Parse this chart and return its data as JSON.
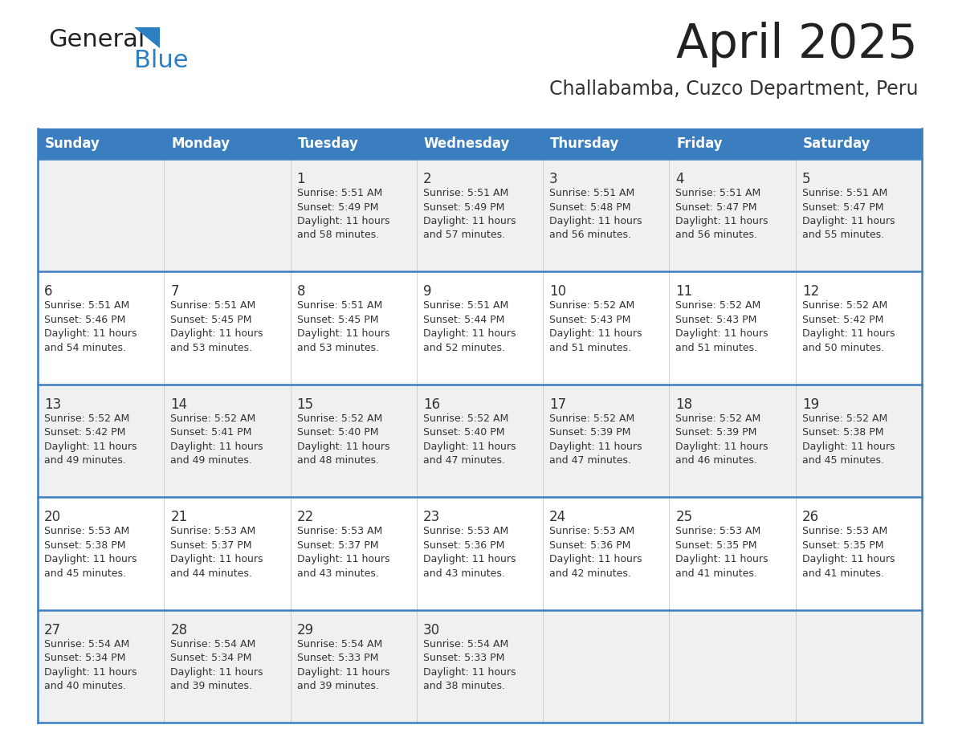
{
  "title": "April 2025",
  "subtitle": "Challabamba, Cuzco Department, Peru",
  "days_of_week": [
    "Sunday",
    "Monday",
    "Tuesday",
    "Wednesday",
    "Thursday",
    "Friday",
    "Saturday"
  ],
  "header_bg": "#3a7ebf",
  "header_text": "#ffffff",
  "row_bg_odd": "#f0f0f0",
  "row_bg_even": "#ffffff",
  "cell_border_color": "#3a7ebf",
  "title_color": "#222222",
  "subtitle_color": "#333333",
  "text_color": "#333333",
  "logo_general_color": "#222222",
  "logo_blue_color": "#2d7fc1",
  "logo_triangle_color": "#2d7fc1",
  "calendar_data": [
    [
      null,
      null,
      {
        "day": 1,
        "sunrise": "5:51 AM",
        "sunset": "5:49 PM",
        "daylight": "11 hours and 58 minutes"
      },
      {
        "day": 2,
        "sunrise": "5:51 AM",
        "sunset": "5:49 PM",
        "daylight": "11 hours and 57 minutes"
      },
      {
        "day": 3,
        "sunrise": "5:51 AM",
        "sunset": "5:48 PM",
        "daylight": "11 hours and 56 minutes"
      },
      {
        "day": 4,
        "sunrise": "5:51 AM",
        "sunset": "5:47 PM",
        "daylight": "11 hours and 56 minutes"
      },
      {
        "day": 5,
        "sunrise": "5:51 AM",
        "sunset": "5:47 PM",
        "daylight": "11 hours and 55 minutes"
      }
    ],
    [
      {
        "day": 6,
        "sunrise": "5:51 AM",
        "sunset": "5:46 PM",
        "daylight": "11 hours and 54 minutes"
      },
      {
        "day": 7,
        "sunrise": "5:51 AM",
        "sunset": "5:45 PM",
        "daylight": "11 hours and 53 minutes"
      },
      {
        "day": 8,
        "sunrise": "5:51 AM",
        "sunset": "5:45 PM",
        "daylight": "11 hours and 53 minutes"
      },
      {
        "day": 9,
        "sunrise": "5:51 AM",
        "sunset": "5:44 PM",
        "daylight": "11 hours and 52 minutes"
      },
      {
        "day": 10,
        "sunrise": "5:52 AM",
        "sunset": "5:43 PM",
        "daylight": "11 hours and 51 minutes"
      },
      {
        "day": 11,
        "sunrise": "5:52 AM",
        "sunset": "5:43 PM",
        "daylight": "11 hours and 51 minutes"
      },
      {
        "day": 12,
        "sunrise": "5:52 AM",
        "sunset": "5:42 PM",
        "daylight": "11 hours and 50 minutes"
      }
    ],
    [
      {
        "day": 13,
        "sunrise": "5:52 AM",
        "sunset": "5:42 PM",
        "daylight": "11 hours and 49 minutes"
      },
      {
        "day": 14,
        "sunrise": "5:52 AM",
        "sunset": "5:41 PM",
        "daylight": "11 hours and 49 minutes"
      },
      {
        "day": 15,
        "sunrise": "5:52 AM",
        "sunset": "5:40 PM",
        "daylight": "11 hours and 48 minutes"
      },
      {
        "day": 16,
        "sunrise": "5:52 AM",
        "sunset": "5:40 PM",
        "daylight": "11 hours and 47 minutes"
      },
      {
        "day": 17,
        "sunrise": "5:52 AM",
        "sunset": "5:39 PM",
        "daylight": "11 hours and 47 minutes"
      },
      {
        "day": 18,
        "sunrise": "5:52 AM",
        "sunset": "5:39 PM",
        "daylight": "11 hours and 46 minutes"
      },
      {
        "day": 19,
        "sunrise": "5:52 AM",
        "sunset": "5:38 PM",
        "daylight": "11 hours and 45 minutes"
      }
    ],
    [
      {
        "day": 20,
        "sunrise": "5:53 AM",
        "sunset": "5:38 PM",
        "daylight": "11 hours and 45 minutes"
      },
      {
        "day": 21,
        "sunrise": "5:53 AM",
        "sunset": "5:37 PM",
        "daylight": "11 hours and 44 minutes"
      },
      {
        "day": 22,
        "sunrise": "5:53 AM",
        "sunset": "5:37 PM",
        "daylight": "11 hours and 43 minutes"
      },
      {
        "day": 23,
        "sunrise": "5:53 AM",
        "sunset": "5:36 PM",
        "daylight": "11 hours and 43 minutes"
      },
      {
        "day": 24,
        "sunrise": "5:53 AM",
        "sunset": "5:36 PM",
        "daylight": "11 hours and 42 minutes"
      },
      {
        "day": 25,
        "sunrise": "5:53 AM",
        "sunset": "5:35 PM",
        "daylight": "11 hours and 41 minutes"
      },
      {
        "day": 26,
        "sunrise": "5:53 AM",
        "sunset": "5:35 PM",
        "daylight": "11 hours and 41 minutes"
      }
    ],
    [
      {
        "day": 27,
        "sunrise": "5:54 AM",
        "sunset": "5:34 PM",
        "daylight": "11 hours and 40 minutes"
      },
      {
        "day": 28,
        "sunrise": "5:54 AM",
        "sunset": "5:34 PM",
        "daylight": "11 hours and 39 minutes"
      },
      {
        "day": 29,
        "sunrise": "5:54 AM",
        "sunset": "5:33 PM",
        "daylight": "11 hours and 39 minutes"
      },
      {
        "day": 30,
        "sunrise": "5:54 AM",
        "sunset": "5:33 PM",
        "daylight": "11 hours and 38 minutes"
      },
      null,
      null,
      null
    ]
  ]
}
